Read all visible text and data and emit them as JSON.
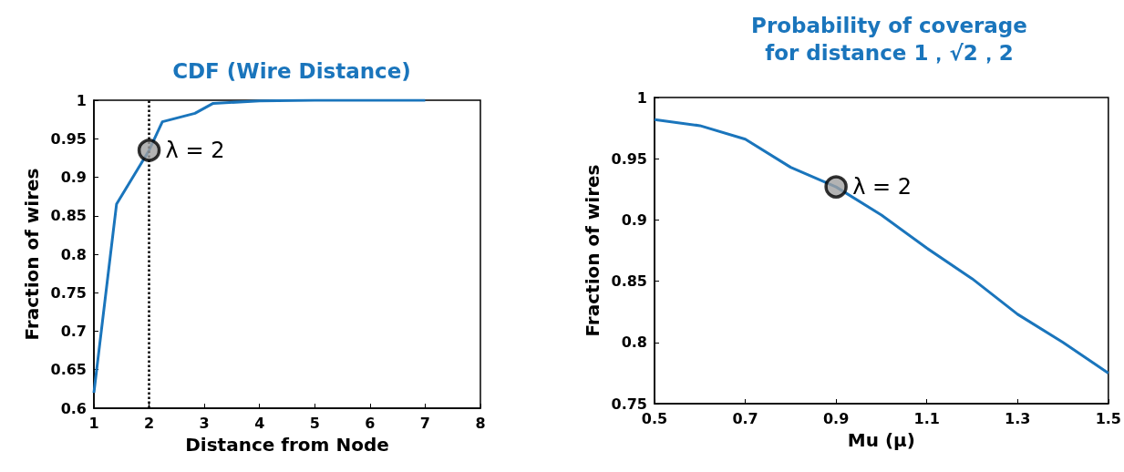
{
  "chart_data": [
    {
      "type": "line",
      "title": "CDF (Wire Distance)",
      "xlabel": "Distance from Node",
      "ylabel": "Fraction of wires",
      "x": [
        1,
        1.41,
        2,
        2.24,
        2.83,
        3.16,
        4,
        5,
        7
      ],
      "series": [
        {
          "color": "#1a75bc",
          "marker": "none",
          "values": [
            0.62,
            0.865,
            0.935,
            0.972,
            0.983,
            0.996,
            0.999,
            1,
            1
          ]
        },
        {
          "type": "scatter",
          "marker": "circle",
          "color": "#a0a0a0",
          "x": [
            2
          ],
          "values": [
            0.935
          ]
        }
      ],
      "xlim": [
        1,
        8
      ],
      "xticks": [
        1,
        2,
        3,
        4,
        5,
        6,
        7,
        8
      ],
      "ylim": [
        0.6,
        1
      ],
      "yticks": [
        0.6,
        0.65,
        0.7,
        0.75,
        0.8,
        0.85,
        0.9,
        0.95,
        1
      ],
      "ref_lines": [
        {
          "axis": "x",
          "value": 2,
          "line_style": "dotted",
          "color": "#000000"
        }
      ],
      "annotations": [
        {
          "text": "λ = 2",
          "x": 2,
          "y": 0.935
        }
      ],
      "grid": false,
      "line_style": "solid"
    },
    {
      "type": "line",
      "title": "Probability of coverage\nfor distance 1，√2，2",
      "xlabel": "Mu (μ)",
      "ylabel": "Fraction of wires",
      "x": [
        0.5,
        0.6,
        0.7,
        0.8,
        0.9,
        1.0,
        1.1,
        1.2,
        1.3,
        1.4,
        1.5
      ],
      "series": [
        {
          "color": "#1a75bc",
          "marker": "none",
          "values": [
            0.982,
            0.977,
            0.966,
            0.943,
            0.927,
            0.904,
            0.877,
            0.852,
            0.823,
            0.8,
            0.775
          ]
        },
        {
          "type": "scatter",
          "marker": "circle",
          "color": "#a0a0a0",
          "x": [
            0.9
          ],
          "values": [
            0.927
          ]
        }
      ],
      "xlim": [
        0.5,
        1.5
      ],
      "xticks": [
        0.5,
        0.7,
        0.9,
        1.1,
        1.3,
        1.5
      ],
      "ylim": [
        0.75,
        1
      ],
      "yticks": [
        0.75,
        0.8,
        0.85,
        0.9,
        0.95,
        1
      ],
      "annotations": [
        {
          "text": "λ = 2",
          "x": 0.9,
          "y": 0.927
        }
      ],
      "grid": false,
      "line_style": "solid"
    }
  ]
}
